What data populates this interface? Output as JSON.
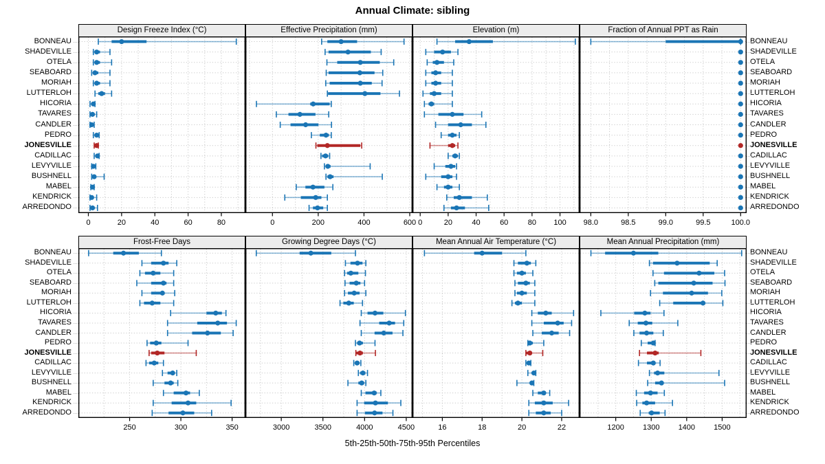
{
  "title": "Annual Climate: sibling",
  "xlabel": "5th-25th-50th-75th-95th Percentiles",
  "percentile_levels": [
    5,
    25,
    50,
    75,
    95
  ],
  "locations": [
    "BONNEAU",
    "SHADEVILLE",
    "OTELA",
    "SEABOARD",
    "MORIAH",
    "LUTTERLOH",
    "HICORIA",
    "TAVARES",
    "CANDLER",
    "PEDRO",
    "JONESVILLE",
    "CADILLAC",
    "LEVYVILLE",
    "BUSHNELL",
    "MABEL",
    "KENDRICK",
    "ARREDONDO"
  ],
  "highlight_location": "JONESVILLE",
  "colors": {
    "series": "#1a75b5",
    "highlight": "#b22726",
    "strip_bg": "#ececec",
    "grid": "#c8c8c8",
    "border": "#000000"
  },
  "chart_data": [
    {
      "type": "dotplot-percentiles",
      "title": "Design Freeze Index (°C)",
      "xlim": [
        -6,
        94.5
      ],
      "tick_values": [
        0,
        20,
        40,
        60,
        80
      ],
      "tick_labels": [
        "0",
        "20",
        "40",
        "60",
        "80"
      ],
      "grid_step": 10,
      "values": [
        [
          6,
          14,
          20,
          35,
          89
        ],
        [
          3,
          4,
          5,
          7,
          13
        ],
        [
          3,
          4,
          5,
          7,
          14
        ],
        [
          2,
          3,
          4,
          6,
          13
        ],
        [
          3,
          4,
          5,
          7,
          13
        ],
        [
          4,
          6,
          8,
          10,
          14
        ],
        [
          1,
          2,
          3,
          3.5,
          4
        ],
        [
          1,
          2,
          2.5,
          3.5,
          5
        ],
        [
          1,
          1.5,
          2,
          2.5,
          3.5
        ],
        [
          3,
          4,
          5,
          6,
          6.5
        ],
        [
          3.5,
          4,
          5,
          5.5,
          6
        ],
        [
          3.5,
          4.5,
          5.5,
          6,
          6.5
        ],
        [
          2,
          2.5,
          3,
          4,
          4.5
        ],
        [
          2,
          3,
          3.5,
          4.5,
          9.5
        ],
        [
          1.5,
          2,
          2.5,
          3,
          3.5
        ],
        [
          1,
          1.5,
          2,
          3,
          5
        ],
        [
          1,
          2,
          2.5,
          3.5,
          5.5
        ]
      ]
    },
    {
      "type": "dotplot-percentiles",
      "title": "Effective Precipitation (mm)",
      "xlim": [
        -118,
        612
      ],
      "tick_values": [
        0,
        200,
        400,
        600
      ],
      "tick_labels": [
        "0",
        "200",
        "400",
        "600"
      ],
      "grid_step": 100,
      "values": [
        [
          215,
          240,
          300,
          370,
          575
        ],
        [
          230,
          245,
          330,
          430,
          475
        ],
        [
          238,
          283,
          384,
          469,
          530
        ],
        [
          235,
          245,
          382,
          446,
          482
        ],
        [
          233,
          250,
          384,
          434,
          479
        ],
        [
          240,
          243,
          404,
          472,
          555
        ],
        [
          -70,
          165,
          178,
          250,
          257
        ],
        [
          17,
          70,
          120,
          188,
          246
        ],
        [
          34,
          79,
          145,
          201,
          258
        ],
        [
          170,
          207,
          234,
          247,
          257
        ],
        [
          190,
          196,
          240,
          384,
          390
        ],
        [
          212,
          217,
          232,
          244,
          250
        ],
        [
          227,
          232,
          242,
          254,
          427
        ],
        [
          234,
          240,
          252,
          267,
          480
        ],
        [
          104,
          144,
          177,
          227,
          264
        ],
        [
          54,
          124,
          189,
          214,
          240
        ],
        [
          160,
          177,
          197,
          222,
          240
        ]
      ]
    },
    {
      "type": "dotplot-percentiles",
      "title": "Elevation (m)",
      "xlim": [
        -5.5,
        114
      ],
      "tick_values": [
        0,
        20,
        40,
        60,
        80,
        100
      ],
      "tick_labels": [
        "0",
        "20",
        "40",
        "60",
        "80",
        "100"
      ],
      "grid_step": 10,
      "values": [
        [
          12,
          25,
          35,
          52,
          111
        ],
        [
          4,
          10,
          16,
          22,
          27
        ],
        [
          5,
          9,
          12,
          17,
          24
        ],
        [
          4,
          8,
          11,
          15,
          23
        ],
        [
          4,
          8,
          11,
          15,
          23
        ],
        [
          2,
          7,
          10,
          15,
          23
        ],
        [
          3,
          6,
          8,
          10,
          23
        ],
        [
          3,
          13,
          23,
          31,
          44
        ],
        [
          11,
          20,
          29,
          37,
          47
        ],
        [
          15,
          20,
          23,
          26,
          28
        ],
        [
          7,
          20,
          23,
          25,
          27
        ],
        [
          20,
          23,
          25,
          27,
          28
        ],
        [
          10,
          18,
          22,
          25,
          26
        ],
        [
          4,
          15,
          20,
          23,
          26
        ],
        [
          12,
          17,
          20,
          23,
          28
        ],
        [
          19,
          24,
          28,
          37,
          48
        ],
        [
          17,
          22,
          26,
          32,
          49
        ]
      ]
    },
    {
      "type": "dotplot-percentiles",
      "title": "Fraction of Annual PPT as Rain",
      "xlim": [
        97.85,
        100.08
      ],
      "tick_values": [
        98.0,
        98.5,
        99.0,
        99.5,
        100.0
      ],
      "tick_labels": [
        "98.0",
        "98.5",
        "99.0",
        "99.5",
        "100.0"
      ],
      "grid_step": 0.25,
      "values": [
        [
          98,
          99,
          100,
          100,
          100
        ],
        [
          100,
          100,
          100,
          100,
          100
        ],
        [
          100,
          100,
          100,
          100,
          100
        ],
        [
          100,
          100,
          100,
          100,
          100
        ],
        [
          100,
          100,
          100,
          100,
          100
        ],
        [
          100,
          100,
          100,
          100,
          100
        ],
        [
          100,
          100,
          100,
          100,
          100
        ],
        [
          100,
          100,
          100,
          100,
          100
        ],
        [
          100,
          100,
          100,
          100,
          100
        ],
        [
          100,
          100,
          100,
          100,
          100
        ],
        [
          100,
          100,
          100,
          100,
          100
        ],
        [
          100,
          100,
          100,
          100,
          100
        ],
        [
          100,
          100,
          100,
          100,
          100
        ],
        [
          100,
          100,
          100,
          100,
          100
        ],
        [
          100,
          100,
          100,
          100,
          100
        ],
        [
          100,
          100,
          100,
          100,
          100
        ],
        [
          100,
          100,
          100,
          100,
          100
        ]
      ]
    },
    {
      "type": "dotplot-percentiles",
      "title": "Frost-Free Days",
      "xlim": [
        200,
        363
      ],
      "tick_values": [
        250,
        300,
        350
      ],
      "tick_labels": [
        "250",
        "300",
        "350"
      ],
      "grid_step": 25,
      "values": [
        [
          210,
          234,
          244,
          259,
          281
        ],
        [
          262,
          271,
          283,
          288,
          296
        ],
        [
          260,
          265,
          273,
          280,
          293
        ],
        [
          257,
          271,
          283,
          286,
          293
        ],
        [
          262,
          271,
          282,
          284,
          294
        ],
        [
          260,
          264,
          272,
          280,
          293
        ],
        [
          290,
          325,
          334,
          340,
          344
        ],
        [
          287,
          316,
          336,
          345,
          354
        ],
        [
          287,
          311,
          326,
          339,
          351
        ],
        [
          267,
          270,
          276,
          281,
          307
        ],
        [
          269,
          271,
          277,
          284,
          315
        ],
        [
          266,
          269,
          274,
          278,
          283
        ],
        [
          282,
          287,
          292,
          294,
          296
        ],
        [
          273,
          284,
          290,
          293,
          297
        ],
        [
          283,
          293,
          305,
          309,
          318
        ],
        [
          273,
          291,
          307,
          315,
          349
        ],
        [
          272,
          288,
          302,
          313,
          330
        ]
      ]
    },
    {
      "type": "dotplot-percentiles",
      "title": "Growing Degree Days (°C)",
      "xlim": [
        2570,
        4575
      ],
      "tick_values": [
        3000,
        3500,
        4000,
        4500
      ],
      "tick_labels": [
        "3000",
        "3500",
        "4000",
        "4500"
      ],
      "grid_step": 250,
      "values": [
        [
          2700,
          3220,
          3355,
          3600,
          3890
        ],
        [
          3770,
          3830,
          3915,
          3975,
          4015
        ],
        [
          3760,
          3790,
          3835,
          3925,
          4010
        ],
        [
          3765,
          3820,
          3900,
          3950,
          4000
        ],
        [
          3760,
          3800,
          3875,
          3940,
          4015
        ],
        [
          3705,
          3745,
          3810,
          3870,
          3975
        ],
        [
          3960,
          4035,
          4125,
          4225,
          4490
        ],
        [
          3945,
          4175,
          4295,
          4365,
          4470
        ],
        [
          3960,
          4120,
          4230,
          4335,
          4460
        ],
        [
          3890,
          3910,
          3940,
          3980,
          4125
        ],
        [
          3895,
          3900,
          3945,
          3980,
          4130
        ],
        [
          3870,
          3885,
          3910,
          3940,
          3955
        ],
        [
          3925,
          3945,
          3980,
          4010,
          4035
        ],
        [
          3800,
          3925,
          3965,
          3995,
          4015
        ],
        [
          3960,
          4010,
          4115,
          4145,
          4195
        ],
        [
          3910,
          3995,
          4130,
          4280,
          4435
        ],
        [
          3910,
          4005,
          4120,
          4215,
          4340
        ]
      ]
    },
    {
      "type": "dotplot-percentiles",
      "title": "Mean Annual Air Temperature (°C)",
      "xlim": [
        14.5,
        22.9
      ],
      "tick_values": [
        16,
        18,
        20,
        22
      ],
      "tick_labels": [
        "16",
        "18",
        "20",
        "22"
      ],
      "grid_step": 1,
      "values": [
        [
          15.1,
          17.6,
          18,
          19,
          20.2
        ],
        [
          19.6,
          19.8,
          20.25,
          20.45,
          20.7
        ],
        [
          19.6,
          19.75,
          20,
          20.2,
          20.55
        ],
        [
          19.65,
          19.8,
          20.2,
          20.4,
          20.65
        ],
        [
          19.65,
          19.75,
          20,
          20.25,
          20.65
        ],
        [
          19.5,
          19.65,
          19.8,
          20,
          20.65
        ],
        [
          20.5,
          20.8,
          21.2,
          21.5,
          22.6
        ],
        [
          20.5,
          21.1,
          21.8,
          22.1,
          22.5
        ],
        [
          20.55,
          21,
          21.5,
          21.85,
          22.4
        ],
        [
          20.3,
          20.32,
          20.4,
          20.55,
          21.1
        ],
        [
          20.2,
          20.22,
          20.4,
          20.5,
          21.05
        ],
        [
          20.2,
          20.25,
          20.35,
          20.4,
          20.45
        ],
        [
          20.3,
          20.5,
          20.6,
          20.65,
          20.7
        ],
        [
          19.75,
          20.4,
          20.5,
          20.55,
          20.6
        ],
        [
          20.55,
          20.8,
          21.1,
          21.2,
          21.4
        ],
        [
          20.35,
          20.65,
          21.1,
          21.55,
          22.35
        ],
        [
          20.35,
          20.7,
          21.1,
          21.45,
          22
        ]
      ]
    },
    {
      "type": "dotplot-percentiles",
      "title": "Mean Annual Precipitation (mm)",
      "xlim": [
        1098,
        1569
      ],
      "tick_values": [
        1200,
        1300,
        1400,
        1500
      ],
      "tick_labels": [
        "1200",
        "1300",
        "1400",
        "1500"
      ],
      "grid_step": 50,
      "values": [
        [
          1130,
          1170,
          1250,
          1320,
          1555
        ],
        [
          1295,
          1305,
          1373,
          1465,
          1486
        ],
        [
          1305,
          1336,
          1435,
          1478,
          1507
        ],
        [
          1310,
          1320,
          1420,
          1473,
          1508
        ],
        [
          1298,
          1333,
          1414,
          1460,
          1499
        ],
        [
          1324,
          1362,
          1446,
          1452,
          1502
        ],
        [
          1158,
          1252,
          1282,
          1298,
          1336
        ],
        [
          1238,
          1262,
          1285,
          1303,
          1375
        ],
        [
          1251,
          1267,
          1287,
          1306,
          1334
        ],
        [
          1272,
          1290,
          1306,
          1310,
          1311
        ],
        [
          1267,
          1288,
          1311,
          1321,
          1440
        ],
        [
          1264,
          1288,
          1306,
          1311,
          1325
        ],
        [
          1295,
          1308,
          1318,
          1337,
          1491
        ],
        [
          1290,
          1311,
          1329,
          1334,
          1507
        ],
        [
          1258,
          1280,
          1298,
          1318,
          1337
        ],
        [
          1259,
          1275,
          1287,
          1311,
          1360
        ],
        [
          1269,
          1293,
          1301,
          1324,
          1339
        ]
      ]
    }
  ]
}
